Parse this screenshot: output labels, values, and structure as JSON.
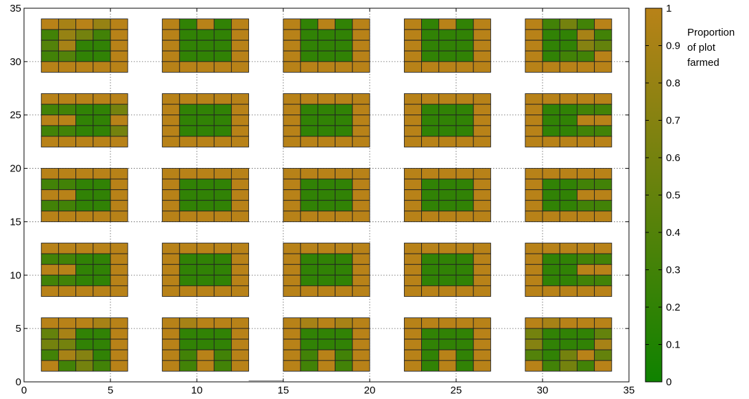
{
  "chart_data": {
    "type": "heatmap",
    "title": "",
    "xlabel": "",
    "ylabel": "",
    "xlim": [
      0,
      35
    ],
    "ylim": [
      0,
      35
    ],
    "xticks": [
      0,
      5,
      10,
      15,
      20,
      25,
      30,
      35
    ],
    "yticks": [
      0,
      5,
      10,
      15,
      20,
      25,
      30,
      35
    ],
    "grid": true,
    "colorbar": {
      "title_lines": [
        "Proportion",
        "of plot",
        "farmed"
      ],
      "range": [
        0,
        1
      ],
      "ticks": [
        0,
        0.1,
        0.2,
        0.3,
        0.4,
        0.5,
        0.6,
        0.7,
        0.8,
        0.9,
        1
      ],
      "low_color": "#0f8200",
      "high_color": "#b88218"
    },
    "cell_size": 1,
    "block_columns_x": [
      1,
      8,
      15,
      22,
      29
    ],
    "block_rows_y": [
      1,
      8,
      15,
      22,
      29
    ],
    "blocks": [
      {
        "x0": 1,
        "y0": 29,
        "values": [
          [
            1,
            0.9,
            1,
            0.8,
            1
          ],
          [
            0.3,
            0.8,
            0.6,
            0.3,
            1
          ],
          [
            0.4,
            0.9,
            0.2,
            0.2,
            1
          ],
          [
            0.3,
            0.4,
            0.2,
            0.2,
            1
          ],
          [
            1,
            1,
            1,
            1,
            1
          ]
        ]
      },
      {
        "x0": 8,
        "y0": 29,
        "values": [
          [
            1,
            0.2,
            1,
            0.2,
            1
          ],
          [
            1,
            0.2,
            0.2,
            0.2,
            1
          ],
          [
            1,
            0.2,
            0.2,
            0.2,
            1
          ],
          [
            1,
            0.2,
            0.2,
            0.2,
            1
          ],
          [
            1,
            1,
            1,
            1,
            1
          ]
        ]
      },
      {
        "x0": 15,
        "y0": 29,
        "values": [
          [
            1,
            0.2,
            1,
            0.2,
            1
          ],
          [
            1,
            0.2,
            0.2,
            0.2,
            1
          ],
          [
            1,
            0.2,
            0.2,
            0.2,
            1
          ],
          [
            1,
            0.2,
            0.2,
            0.2,
            1
          ],
          [
            1,
            1,
            1,
            1,
            1
          ]
        ]
      },
      {
        "x0": 22,
        "y0": 29,
        "values": [
          [
            1,
            0.2,
            1,
            0.2,
            1
          ],
          [
            1,
            0.2,
            0.2,
            0.2,
            1
          ],
          [
            1,
            0.2,
            0.2,
            0.2,
            1
          ],
          [
            1,
            0.2,
            0.2,
            0.2,
            1
          ],
          [
            1,
            1,
            1,
            1,
            1
          ]
        ]
      },
      {
        "x0": 29,
        "y0": 29,
        "values": [
          [
            1,
            0.3,
            0.6,
            0.3,
            1
          ],
          [
            1,
            0.2,
            0.2,
            0.9,
            0.3
          ],
          [
            1,
            0.2,
            0.2,
            0.7,
            0.5
          ],
          [
            1,
            0.2,
            0.3,
            0.3,
            1
          ],
          [
            1,
            1,
            1,
            1,
            1
          ]
        ]
      },
      {
        "x0": 1,
        "y0": 22,
        "values": [
          [
            1,
            1,
            1,
            1,
            1
          ],
          [
            0.3,
            0.3,
            0.2,
            0.2,
            0.6
          ],
          [
            1,
            1,
            0.2,
            0.2,
            1
          ],
          [
            0.3,
            0.3,
            0.2,
            0.2,
            0.6
          ],
          [
            1,
            1,
            1,
            1,
            1
          ]
        ]
      },
      {
        "x0": 8,
        "y0": 22,
        "values": [
          [
            1,
            1,
            1,
            1,
            1
          ],
          [
            1,
            0.2,
            0.2,
            0.2,
            1
          ],
          [
            1,
            0.2,
            0.2,
            0.2,
            1
          ],
          [
            1,
            0.2,
            0.2,
            0.2,
            1
          ],
          [
            1,
            1,
            1,
            1,
            1
          ]
        ]
      },
      {
        "x0": 15,
        "y0": 22,
        "values": [
          [
            1,
            1,
            1,
            1,
            1
          ],
          [
            1,
            0.2,
            0.2,
            0.2,
            1
          ],
          [
            1,
            0.2,
            0.2,
            0.2,
            1
          ],
          [
            1,
            0.2,
            0.2,
            0.2,
            1
          ],
          [
            1,
            1,
            1,
            1,
            1
          ]
        ]
      },
      {
        "x0": 22,
        "y0": 22,
        "values": [
          [
            1,
            1,
            1,
            1,
            1
          ],
          [
            1,
            0.2,
            0.2,
            0.2,
            1
          ],
          [
            1,
            0.2,
            0.2,
            0.2,
            1
          ],
          [
            1,
            0.2,
            0.2,
            0.2,
            1
          ],
          [
            1,
            1,
            1,
            1,
            1
          ]
        ]
      },
      {
        "x0": 29,
        "y0": 22,
        "values": [
          [
            1,
            1,
            1,
            1,
            1
          ],
          [
            1,
            0.2,
            0.2,
            0.3,
            0.3
          ],
          [
            1,
            0.2,
            0.2,
            1,
            1
          ],
          [
            1,
            0.2,
            0.2,
            0.3,
            0.3
          ],
          [
            1,
            1,
            1,
            1,
            1
          ]
        ]
      },
      {
        "x0": 1,
        "y0": 15,
        "values": [
          [
            1,
            1,
            1,
            1,
            1
          ],
          [
            0.3,
            0.3,
            0.2,
            0.2,
            1
          ],
          [
            1,
            1,
            0.2,
            0.2,
            1
          ],
          [
            0.3,
            0.3,
            0.2,
            0.2,
            1
          ],
          [
            1,
            1,
            1,
            1,
            1
          ]
        ]
      },
      {
        "x0": 8,
        "y0": 15,
        "values": [
          [
            1,
            1,
            1,
            1,
            1
          ],
          [
            1,
            0.2,
            0.2,
            0.2,
            1
          ],
          [
            1,
            0.2,
            0.2,
            0.2,
            1
          ],
          [
            1,
            0.2,
            0.2,
            0.2,
            1
          ],
          [
            1,
            1,
            1,
            1,
            1
          ]
        ]
      },
      {
        "x0": 15,
        "y0": 15,
        "values": [
          [
            1,
            1,
            1,
            1,
            1
          ],
          [
            1,
            0.2,
            0.2,
            0.2,
            1
          ],
          [
            1,
            0.2,
            0.2,
            0.2,
            1
          ],
          [
            1,
            0.2,
            0.2,
            0.2,
            1
          ],
          [
            1,
            1,
            1,
            1,
            1
          ]
        ]
      },
      {
        "x0": 22,
        "y0": 15,
        "values": [
          [
            1,
            1,
            1,
            1,
            1
          ],
          [
            1,
            0.2,
            0.2,
            0.2,
            1
          ],
          [
            1,
            0.2,
            0.2,
            0.2,
            1
          ],
          [
            1,
            0.2,
            0.2,
            0.2,
            1
          ],
          [
            1,
            1,
            1,
            1,
            1
          ]
        ]
      },
      {
        "x0": 29,
        "y0": 15,
        "values": [
          [
            1,
            1,
            1,
            1,
            1
          ],
          [
            1,
            0.2,
            0.2,
            0.3,
            0.3
          ],
          [
            1,
            0.2,
            0.2,
            1,
            1
          ],
          [
            1,
            0.2,
            0.2,
            0.3,
            0.3
          ],
          [
            1,
            1,
            1,
            1,
            1
          ]
        ]
      },
      {
        "x0": 1,
        "y0": 8,
        "values": [
          [
            1,
            1,
            1,
            1,
            1
          ],
          [
            0.3,
            0.3,
            0.2,
            0.2,
            1
          ],
          [
            1,
            1,
            0.2,
            0.2,
            1
          ],
          [
            0.3,
            0.3,
            0.2,
            0.2,
            1
          ],
          [
            1,
            1,
            1,
            1,
            1
          ]
        ]
      },
      {
        "x0": 8,
        "y0": 8,
        "values": [
          [
            1,
            1,
            1,
            1,
            1
          ],
          [
            1,
            0.2,
            0.2,
            0.2,
            1
          ],
          [
            1,
            0.2,
            0.2,
            0.2,
            1
          ],
          [
            1,
            0.2,
            0.2,
            0.2,
            1
          ],
          [
            1,
            1,
            1,
            1,
            1
          ]
        ]
      },
      {
        "x0": 15,
        "y0": 8,
        "values": [
          [
            1,
            1,
            1,
            1,
            1
          ],
          [
            1,
            0.2,
            0.2,
            0.2,
            1
          ],
          [
            1,
            0.2,
            0.2,
            0.2,
            1
          ],
          [
            1,
            0.2,
            0.2,
            0.2,
            1
          ],
          [
            1,
            1,
            1,
            1,
            1
          ]
        ]
      },
      {
        "x0": 22,
        "y0": 8,
        "values": [
          [
            1,
            1,
            1,
            1,
            1
          ],
          [
            1,
            0.2,
            0.2,
            0.2,
            1
          ],
          [
            1,
            0.2,
            0.2,
            0.2,
            1
          ],
          [
            1,
            0.2,
            0.2,
            0.2,
            1
          ],
          [
            1,
            1,
            1,
            1,
            1
          ]
        ]
      },
      {
        "x0": 29,
        "y0": 8,
        "values": [
          [
            1,
            1,
            1,
            1,
            1
          ],
          [
            1,
            0.2,
            0.2,
            0.3,
            0.3
          ],
          [
            1,
            0.2,
            0.2,
            1,
            1
          ],
          [
            1,
            0.2,
            0.2,
            0.3,
            0.3
          ],
          [
            1,
            1,
            1,
            1,
            1
          ]
        ]
      },
      {
        "x0": 1,
        "y0": 1,
        "values": [
          [
            1,
            1,
            1,
            0.9,
            1
          ],
          [
            0.5,
            0.9,
            0.2,
            0.2,
            1
          ],
          [
            0.6,
            0.6,
            0.2,
            0.2,
            1
          ],
          [
            0.3,
            0.9,
            0.7,
            0.2,
            1
          ],
          [
            1,
            0.3,
            0.6,
            0.3,
            1
          ]
        ]
      },
      {
        "x0": 8,
        "y0": 1,
        "values": [
          [
            1,
            0.9,
            1,
            1,
            1
          ],
          [
            1,
            0.2,
            0.2,
            0.2,
            1
          ],
          [
            1,
            0.2,
            0.2,
            0.2,
            1
          ],
          [
            1,
            0.3,
            1,
            0.3,
            1
          ],
          [
            1,
            0.3,
            1,
            0.3,
            1
          ]
        ]
      },
      {
        "x0": 15,
        "y0": 1,
        "values": [
          [
            1,
            0.9,
            1,
            0.9,
            1
          ],
          [
            1,
            0.2,
            0.2,
            0.2,
            1
          ],
          [
            1,
            0.2,
            0.2,
            0.2,
            1
          ],
          [
            1,
            0.3,
            1,
            0.3,
            1
          ],
          [
            1,
            0.3,
            1,
            0.3,
            1
          ]
        ]
      },
      {
        "x0": 22,
        "y0": 1,
        "values": [
          [
            1,
            1,
            1,
            1,
            1
          ],
          [
            1,
            0.2,
            0.2,
            0.2,
            1
          ],
          [
            1,
            0.2,
            0.2,
            0.2,
            1
          ],
          [
            1,
            0.2,
            1,
            0.2,
            1
          ],
          [
            1,
            0.2,
            1,
            0.2,
            1
          ]
        ]
      },
      {
        "x0": 29,
        "y0": 1,
        "values": [
          [
            1,
            0.9,
            1,
            1,
            1
          ],
          [
            0.6,
            0.2,
            0.2,
            0.2,
            0.5
          ],
          [
            0.7,
            0.2,
            0.2,
            0.2,
            0.9
          ],
          [
            0.4,
            0.2,
            0.6,
            1,
            0.5
          ],
          [
            1,
            0.3,
            0.6,
            0.3,
            1
          ]
        ]
      }
    ],
    "segments": [
      {
        "x": [
          13,
          15
        ],
        "y": [
          0.1,
          0.1
        ]
      }
    ]
  }
}
